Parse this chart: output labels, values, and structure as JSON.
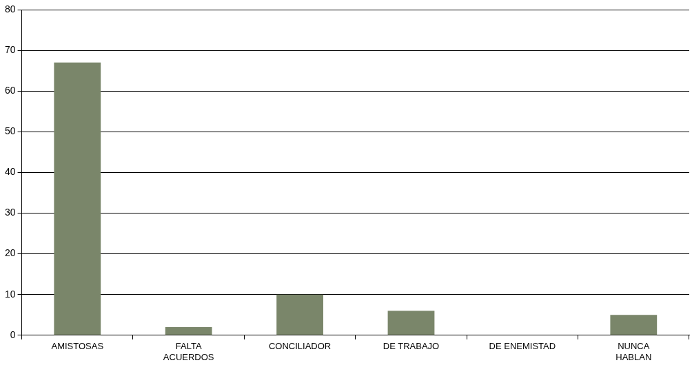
{
  "chart_data": {
    "type": "bar",
    "categories": [
      "AMISTOSAS",
      "FALTA\nACUERDOS",
      "CONCILIADOR",
      "DE TRABAJO",
      "DE ENEMISTAD",
      "NUNCA\nHABLAN"
    ],
    "values": [
      67,
      2,
      10,
      6,
      0,
      5
    ],
    "color": "#7a866a",
    "ylim": [
      0,
      80
    ],
    "yticks": [
      0,
      10,
      20,
      30,
      40,
      50,
      60,
      70,
      80
    ],
    "grid": "y",
    "legend": false
  }
}
